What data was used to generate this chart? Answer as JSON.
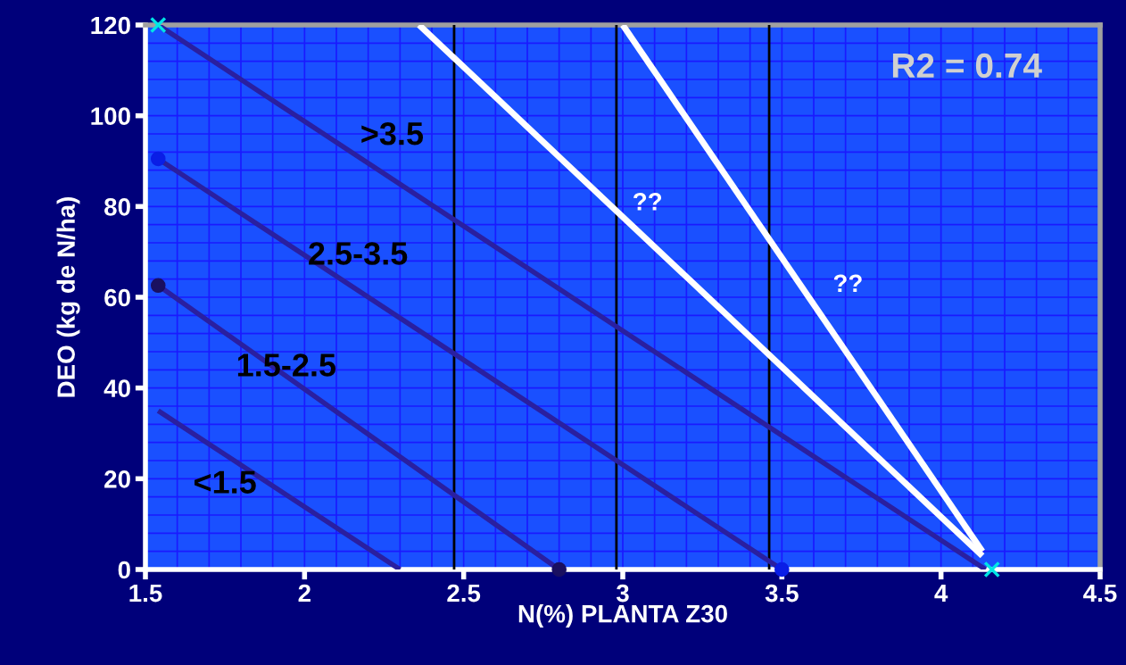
{
  "chart_data": {
    "type": "line",
    "xlabel": "N(%) PLANTA Z30",
    "ylabel": "DEO (kg de N/ha)",
    "xlim": [
      1.5,
      4.5
    ],
    "xticks": [
      1.5,
      2,
      2.5,
      3,
      3.5,
      4,
      4.5
    ],
    "ylim": [
      0,
      120
    ],
    "yticks": [
      0,
      20,
      40,
      60,
      80,
      100,
      120
    ],
    "grid": true,
    "series": [
      {
        "name": ">3.5",
        "color": "#2a1fa0",
        "x": [
          1.54,
          4.14
        ],
        "values": [
          120,
          0
        ]
      },
      {
        "name": "2.5-3.5",
        "color": "#2a1fa0",
        "x": [
          1.54,
          3.5
        ],
        "values": [
          90.5,
          0
        ]
      },
      {
        "name": "1.5-2.5",
        "color": "#2a1fa0",
        "x": [
          1.54,
          2.8
        ],
        "values": [
          62.6,
          0
        ]
      },
      {
        "name": "<1.5",
        "color": "#2a1fa0",
        "x": [
          1.54,
          2.3
        ],
        "values": [
          35,
          0
        ]
      },
      {
        "name": "??",
        "color": "#ffffff",
        "x": [
          2.36,
          4.13
        ],
        "values": [
          120,
          3
        ]
      },
      {
        "name": "??",
        "color": "#ffffff",
        "x": [
          3.0,
          4.13
        ],
        "values": [
          120,
          4
        ]
      },
      {
        "type": "scatter",
        "marker": "cross",
        "color": "#00e5e5",
        "x": [
          1.54,
          4.16
        ],
        "values": [
          120,
          0
        ]
      },
      {
        "type": "scatter",
        "marker": "circle",
        "color": "#0a1ee6",
        "x": [
          1.54,
          3.5
        ],
        "values": [
          90.5,
          0
        ]
      },
      {
        "type": "scatter",
        "marker": "circle",
        "color": "#1a1060",
        "x": [
          1.54,
          2.8
        ],
        "values": [
          62.6,
          0
        ]
      }
    ],
    "ref_lines": [
      {
        "axis": "x",
        "value": 2.47,
        "color": "#000000"
      },
      {
        "axis": "x",
        "value": 2.98,
        "color": "#000000"
      },
      {
        "axis": "x",
        "value": 3.46,
        "color": "#000000"
      }
    ],
    "annotations": [
      "R2 = 0.74"
    ]
  }
}
